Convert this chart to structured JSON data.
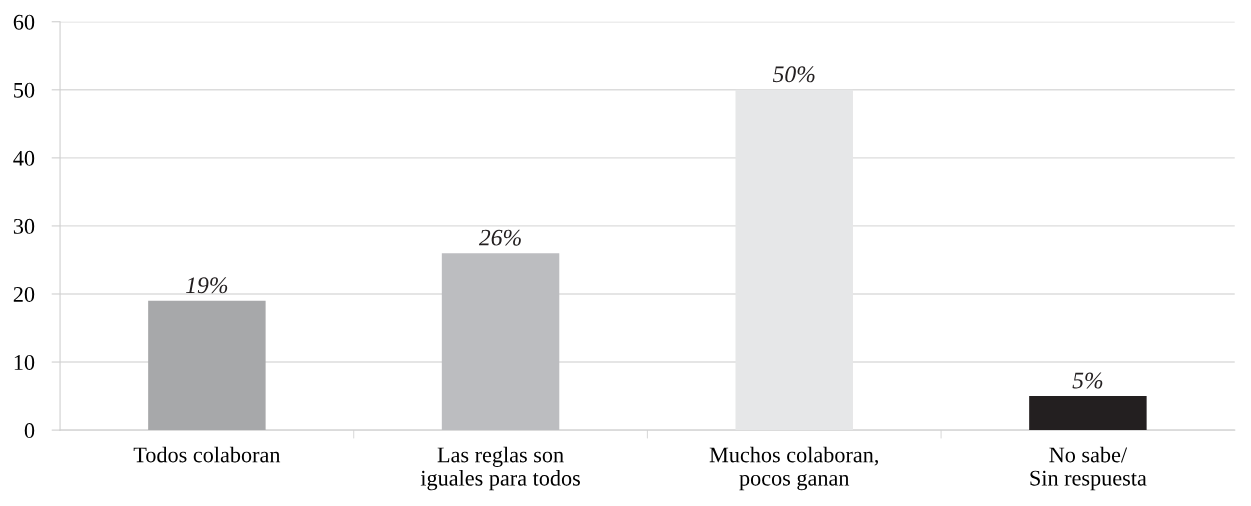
{
  "chart_data": {
    "type": "bar",
    "categories": [
      "Todos colaboran",
      "Las reglas son\niguales para todos",
      "Muchos colaboran,\npocos ganan",
      "No sabe/\nSin respuesta"
    ],
    "values": [
      19,
      26,
      50,
      5
    ],
    "colors": [
      "#a7a8aa",
      "#bcbdc0",
      "#e6e7e8",
      "#231f20"
    ],
    "value_labels": [
      "19%",
      "26%",
      "50%",
      "5%"
    ],
    "ylim": [
      0,
      60
    ],
    "yticks": [
      0,
      10,
      20,
      30,
      40,
      50,
      60
    ],
    "grid": "y",
    "legend": false
  }
}
